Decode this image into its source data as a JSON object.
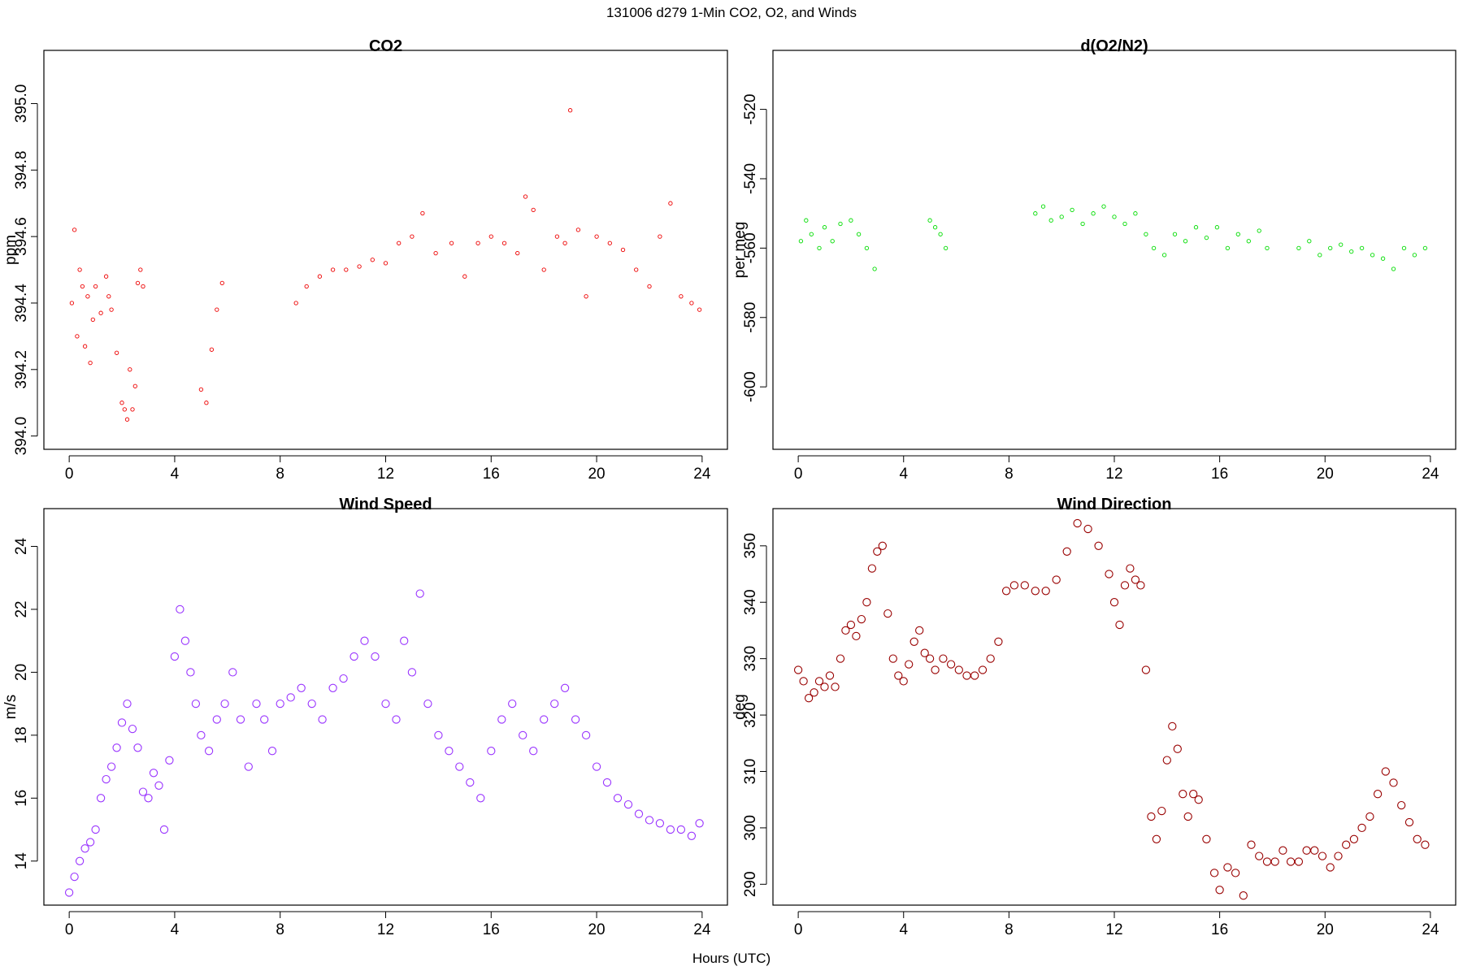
{
  "page": {
    "suptitle": "131006   d279   1-Min CO2, O2, and Winds",
    "shared_xlabel": "Hours (UTC)"
  },
  "chart_data": [
    {
      "type": "scatter",
      "title": "CO2",
      "xlabel": "",
      "ylabel": "ppm",
      "xlim": [
        -0.96,
        24.96
      ],
      "ylim": [
        393.96,
        395.16
      ],
      "xticks": [
        0,
        4,
        8,
        12,
        16,
        20,
        24
      ],
      "xticklabels": [
        "0",
        "4",
        "8",
        "12",
        "16",
        "20",
        "24"
      ],
      "yticks": [
        394.0,
        394.2,
        394.4,
        394.6,
        394.8,
        395.0
      ],
      "yticklabels": [
        "394.0",
        "394.2",
        "394.4",
        "394.6",
        "394.8",
        "395.0"
      ],
      "color": "#ee0000",
      "marker": "open-circle-small",
      "grid": false,
      "series": [
        {
          "name": "",
          "x": [
            0.1,
            0.2,
            0.3,
            0.4,
            0.5,
            0.6,
            0.7,
            0.8,
            0.9,
            1.0,
            1.2,
            1.4,
            1.5,
            1.6,
            1.8,
            2.0,
            2.1,
            2.2,
            2.3,
            2.4,
            2.5,
            2.6,
            2.7,
            2.8,
            5.0,
            5.2,
            5.4,
            5.6,
            5.8,
            8.6,
            9.0,
            9.5,
            10.0,
            10.5,
            11.0,
            11.5,
            12.0,
            12.5,
            13.0,
            13.4,
            13.9,
            14.5,
            15.0,
            15.5,
            16.0,
            16.5,
            17.0,
            17.3,
            17.6,
            18.0,
            18.5,
            18.8,
            19.0,
            19.3,
            19.6,
            20.0,
            20.5,
            21.0,
            21.5,
            22.0,
            22.4,
            22.8,
            23.2,
            23.6,
            23.9
          ],
          "y": [
            394.4,
            394.62,
            394.3,
            394.5,
            394.45,
            394.27,
            394.42,
            394.22,
            394.35,
            394.45,
            394.37,
            394.48,
            394.42,
            394.38,
            394.25,
            394.1,
            394.08,
            394.05,
            394.2,
            394.08,
            394.15,
            394.46,
            394.5,
            394.45,
            394.14,
            394.1,
            394.26,
            394.38,
            394.46,
            394.4,
            394.45,
            394.48,
            394.5,
            394.5,
            394.51,
            394.53,
            394.52,
            394.58,
            394.6,
            394.67,
            394.55,
            394.58,
            394.48,
            394.58,
            394.6,
            394.58,
            394.55,
            394.72,
            394.68,
            394.5,
            394.6,
            394.58,
            394.98,
            394.62,
            394.42,
            394.6,
            394.58,
            394.56,
            394.5,
            394.45,
            394.6,
            394.7,
            394.42,
            394.4,
            394.38
          ]
        }
      ]
    },
    {
      "type": "scatter",
      "title": "d(O2/N2)",
      "xlabel": "",
      "ylabel": "per meg",
      "xlim": [
        -0.96,
        24.96
      ],
      "ylim": [
        -618,
        -503
      ],
      "xticks": [
        0,
        4,
        8,
        12,
        16,
        20,
        24
      ],
      "xticklabels": [
        "0",
        "4",
        "8",
        "12",
        "16",
        "20",
        "24"
      ],
      "yticks": [
        -600,
        -580,
        -560,
        -540,
        -520
      ],
      "yticklabels": [
        "-600",
        "-580",
        "-560",
        "-540",
        "-520"
      ],
      "color": "#00dd00",
      "marker": "open-circle-small",
      "grid": false,
      "series": [
        {
          "name": "",
          "x": [
            0.1,
            0.3,
            0.5,
            0.8,
            1.0,
            1.3,
            1.6,
            2.0,
            2.3,
            2.6,
            2.9,
            5.0,
            5.2,
            5.4,
            5.6,
            9.0,
            9.3,
            9.6,
            10.0,
            10.4,
            10.8,
            11.2,
            11.6,
            12.0,
            12.4,
            12.8,
            13.2,
            13.5,
            13.9,
            14.3,
            14.7,
            15.1,
            15.5,
            15.9,
            16.3,
            16.7,
            17.1,
            17.5,
            17.8,
            19.0,
            19.4,
            19.8,
            20.2,
            20.6,
            21.0,
            21.4,
            21.8,
            22.2,
            22.6,
            23.0,
            23.4,
            23.8
          ],
          "y": [
            -558,
            -552,
            -556,
            -560,
            -554,
            -558,
            -553,
            -552,
            -556,
            -560,
            -566,
            -552,
            -554,
            -556,
            -560,
            -550,
            -548,
            -552,
            -551,
            -549,
            -553,
            -550,
            -548,
            -551,
            -553,
            -550,
            -556,
            -560,
            -562,
            -556,
            -558,
            -554,
            -557,
            -554,
            -560,
            -556,
            -558,
            -555,
            -560,
            -560,
            -558,
            -562,
            -560,
            -559,
            -561,
            -560,
            -562,
            -563,
            -566,
            -560,
            -562,
            -560
          ]
        }
      ]
    },
    {
      "type": "scatter",
      "title": "Wind Speed",
      "xlabel": "",
      "ylabel": "m/s",
      "xlim": [
        -0.96,
        24.96
      ],
      "ylim": [
        12.6,
        25.2
      ],
      "xticks": [
        0,
        4,
        8,
        12,
        16,
        20,
        24
      ],
      "xticklabels": [
        "0",
        "4",
        "8",
        "12",
        "16",
        "20",
        "24"
      ],
      "yticks": [
        14,
        16,
        18,
        20,
        22,
        24
      ],
      "yticklabels": [
        "14",
        "16",
        "18",
        "20",
        "22",
        "24"
      ],
      "color": "#9933ff",
      "marker": "open-circle",
      "grid": false,
      "series": [
        {
          "name": "",
          "x": [
            0.0,
            0.2,
            0.4,
            0.6,
            0.8,
            1.0,
            1.2,
            1.4,
            1.6,
            1.8,
            2.0,
            2.2,
            2.4,
            2.6,
            2.8,
            3.0,
            3.2,
            3.4,
            3.6,
            3.8,
            4.0,
            4.2,
            4.4,
            4.6,
            4.8,
            5.0,
            5.3,
            5.6,
            5.9,
            6.2,
            6.5,
            6.8,
            7.1,
            7.4,
            7.7,
            8.0,
            8.4,
            8.8,
            9.2,
            9.6,
            10.0,
            10.4,
            10.8,
            11.2,
            11.6,
            12.0,
            12.4,
            12.7,
            13.0,
            13.3,
            13.6,
            14.0,
            14.4,
            14.8,
            15.2,
            15.6,
            16.0,
            16.4,
            16.8,
            17.2,
            17.6,
            18.0,
            18.4,
            18.8,
            19.2,
            19.6,
            20.0,
            20.4,
            20.8,
            21.2,
            21.6,
            22.0,
            22.4,
            22.8,
            23.2,
            23.6,
            23.9
          ],
          "y": [
            13.0,
            13.5,
            14.0,
            14.4,
            14.6,
            15.0,
            16.0,
            16.6,
            17.0,
            17.6,
            18.4,
            19.0,
            18.2,
            17.6,
            16.2,
            16.0,
            16.8,
            16.4,
            15.0,
            17.2,
            20.5,
            22.0,
            21.0,
            20.0,
            19.0,
            18.0,
            17.5,
            18.5,
            19.0,
            20.0,
            18.5,
            17.0,
            19.0,
            18.5,
            17.5,
            19.0,
            19.2,
            19.5,
            19.0,
            18.5,
            19.5,
            19.8,
            20.5,
            21.0,
            20.5,
            19.0,
            18.5,
            21.0,
            20.0,
            22.5,
            19.0,
            18.0,
            17.5,
            17.0,
            16.5,
            16.0,
            17.5,
            18.5,
            19.0,
            18.0,
            17.5,
            18.5,
            19.0,
            19.5,
            18.5,
            18.0,
            17.0,
            16.5,
            16.0,
            15.8,
            15.5,
            15.3,
            15.2,
            15.0,
            15.0,
            14.8,
            15.2
          ]
        }
      ]
    },
    {
      "type": "scatter",
      "title": "Wind Direction",
      "xlabel": "",
      "ylabel": "deg",
      "xlim": [
        -0.96,
        24.96
      ],
      "ylim": [
        286.3,
        356.6
      ],
      "xticks": [
        0,
        4,
        8,
        12,
        16,
        20,
        24
      ],
      "xticklabels": [
        "0",
        "4",
        "8",
        "12",
        "16",
        "20",
        "24"
      ],
      "yticks": [
        290,
        300,
        310,
        320,
        330,
        340,
        350
      ],
      "yticklabels": [
        "290",
        "300",
        "310",
        "320",
        "330",
        "340",
        "350"
      ],
      "color": "#990000",
      "marker": "open-circle",
      "grid": false,
      "series": [
        {
          "name": "",
          "x": [
            0.0,
            0.2,
            0.4,
            0.6,
            0.8,
            1.0,
            1.2,
            1.4,
            1.6,
            1.8,
            2.0,
            2.2,
            2.4,
            2.6,
            2.8,
            3.0,
            3.2,
            3.4,
            3.6,
            3.8,
            4.0,
            4.2,
            4.4,
            4.6,
            4.8,
            5.0,
            5.2,
            5.5,
            5.8,
            6.1,
            6.4,
            6.7,
            7.0,
            7.3,
            7.6,
            7.9,
            8.2,
            8.6,
            9.0,
            9.4,
            9.8,
            10.2,
            10.6,
            11.0,
            11.4,
            11.8,
            12.0,
            12.2,
            12.4,
            12.6,
            12.8,
            13.0,
            13.2,
            13.4,
            13.6,
            13.8,
            14.0,
            14.2,
            14.4,
            14.6,
            14.8,
            15.0,
            15.2,
            15.5,
            15.8,
            16.0,
            16.3,
            16.6,
            16.9,
            17.2,
            17.5,
            17.8,
            18.1,
            18.4,
            18.7,
            19.0,
            19.3,
            19.6,
            19.9,
            20.2,
            20.5,
            20.8,
            21.1,
            21.4,
            21.7,
            22.0,
            22.3,
            22.6,
            22.9,
            23.2,
            23.5,
            23.8
          ],
          "y": [
            328,
            326,
            323,
            324,
            326,
            325,
            327,
            325,
            330,
            335,
            336,
            334,
            337,
            340,
            346,
            349,
            350,
            338,
            330,
            327,
            326,
            329,
            333,
            335,
            331,
            330,
            328,
            330,
            329,
            328,
            327,
            327,
            328,
            330,
            333,
            342,
            343,
            343,
            342,
            342,
            344,
            349,
            354,
            353,
            350,
            345,
            340,
            336,
            343,
            346,
            344,
            343,
            328,
            302,
            298,
            303,
            312,
            318,
            314,
            306,
            302,
            306,
            305,
            298,
            292,
            289,
            293,
            292,
            288,
            297,
            295,
            294,
            294,
            296,
            294,
            294,
            296,
            296,
            295,
            293,
            295,
            297,
            298,
            300,
            302,
            306,
            310,
            308,
            304,
            301,
            298,
            297
          ]
        }
      ]
    }
  ]
}
